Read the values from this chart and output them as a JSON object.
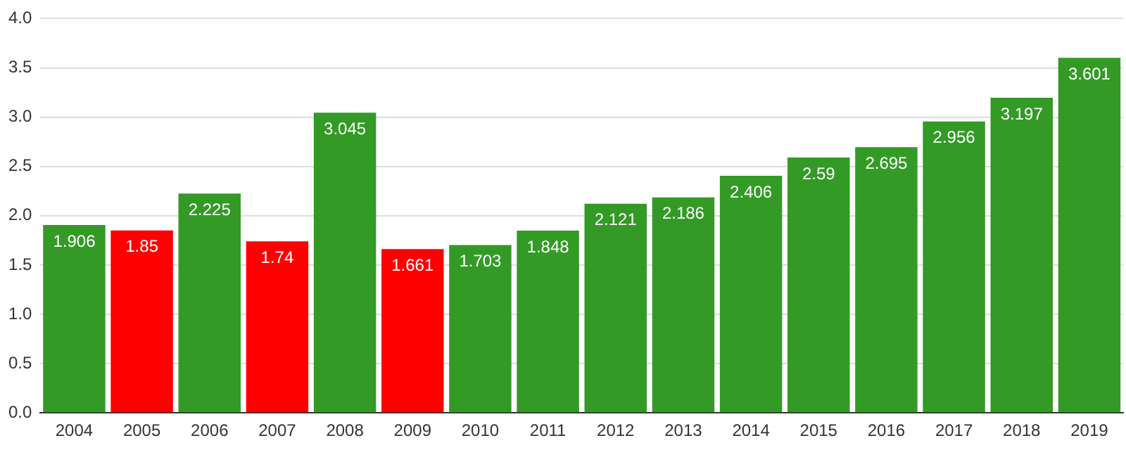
{
  "chart_data": {
    "type": "bar",
    "categories": [
      "2004",
      "2005",
      "2006",
      "2007",
      "2008",
      "2009",
      "2010",
      "2011",
      "2012",
      "2013",
      "2014",
      "2015",
      "2016",
      "2017",
      "2018",
      "2019"
    ],
    "values": [
      1.906,
      1.85,
      2.225,
      1.74,
      3.045,
      1.661,
      1.703,
      1.848,
      2.121,
      2.186,
      2.406,
      2.59,
      2.695,
      2.956,
      3.197,
      3.601
    ],
    "colors": [
      "#339a26",
      "#ff0000",
      "#339a26",
      "#ff0000",
      "#339a26",
      "#ff0000",
      "#339a26",
      "#339a26",
      "#339a26",
      "#339a26",
      "#339a26",
      "#339a26",
      "#339a26",
      "#339a26",
      "#339a26",
      "#339a26"
    ],
    "ylim": [
      0,
      4
    ],
    "yticks": [
      {
        "value": 0,
        "label": "0.0"
      },
      {
        "value": 0.5,
        "label": "0.5"
      },
      {
        "value": 1,
        "label": "1.0"
      },
      {
        "value": 1.5,
        "label": "1.5"
      },
      {
        "value": 2,
        "label": "2.0"
      },
      {
        "value": 2.5,
        "label": "2.5"
      },
      {
        "value": 3,
        "label": "3.0"
      },
      {
        "value": 3.5,
        "label": "3.5"
      },
      {
        "value": 4,
        "label": "4.0"
      }
    ],
    "grid": "y",
    "data_labels": true
  }
}
